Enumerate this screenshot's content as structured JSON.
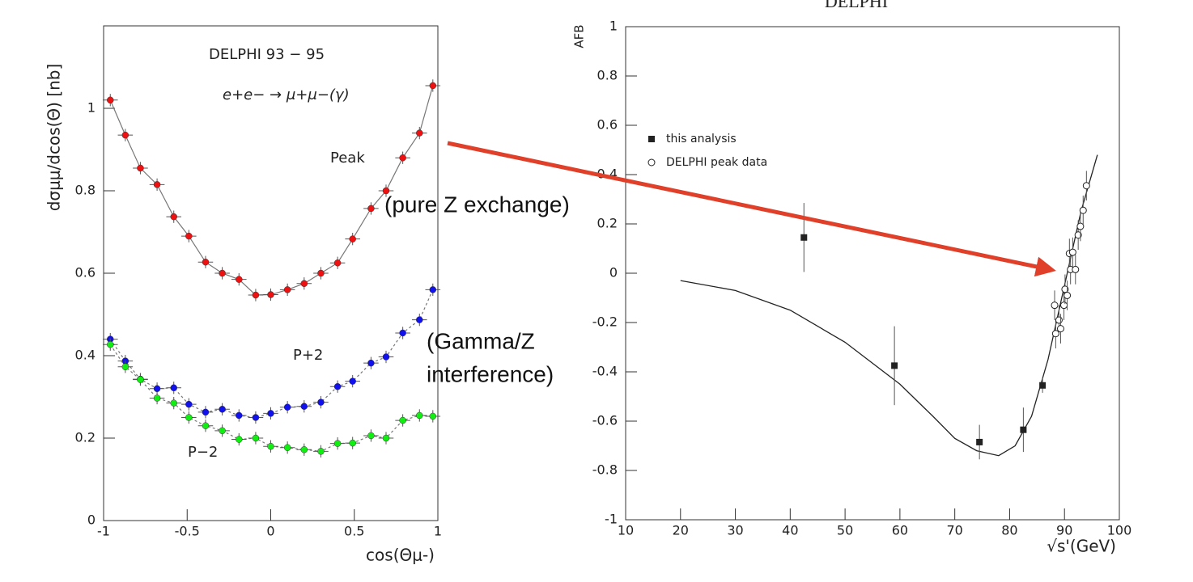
{
  "chart_data": [
    {
      "type": "scatter",
      "ylabel": "dσμμ/dcos(Θ) [nb]",
      "xlabel": "cos(Θμ-)",
      "annotations": [
        "DELPHI 93 − 95",
        "e+e− → μ+μ−(γ)",
        "Peak",
        "P+2",
        "P−2"
      ],
      "xlim": [
        -1,
        1
      ],
      "ylim": [
        0,
        1.2
      ],
      "xticks": [
        -1,
        -0.5,
        0,
        0.5,
        1
      ],
      "yticks": [
        0,
        0.2,
        0.4,
        0.6,
        0.8,
        1
      ],
      "xerr": 0.045,
      "x": [
        -0.96,
        -0.87,
        -0.78,
        -0.68,
        -0.58,
        -0.49,
        -0.39,
        -0.29,
        -0.19,
        -0.09,
        0,
        0.1,
        0.2,
        0.3,
        0.4,
        0.49,
        0.6,
        0.69,
        0.79,
        0.89,
        0.97
      ],
      "series": [
        {
          "name": "Peak",
          "color": "#ee1111",
          "line": "solid",
          "yerr": 0.015,
          "values": [
            1.02,
            0.935,
            0.855,
            0.815,
            0.737,
            0.69,
            0.627,
            0.6,
            0.585,
            0.547,
            0.548,
            0.56,
            0.575,
            0.6,
            0.625,
            0.683,
            0.757,
            0.8,
            0.88,
            0.94,
            1.055
          ]
        },
        {
          "name": "P+2",
          "color": "#1111ee",
          "line": "dotted",
          "yerr": 0.015,
          "values": [
            0.44,
            0.387,
            0.343,
            0.32,
            0.322,
            0.282,
            0.263,
            0.27,
            0.255,
            0.25,
            0.26,
            0.275,
            0.277,
            0.287,
            0.325,
            0.338,
            0.382,
            0.397,
            0.455,
            0.487,
            0.56
          ]
        },
        {
          "name": "P−2",
          "color": "#11ee11",
          "line": "dotted",
          "yerr": 0.015,
          "values": [
            0.427,
            0.373,
            0.342,
            0.297,
            0.285,
            0.25,
            0.23,
            0.218,
            0.197,
            0.2,
            0.18,
            0.177,
            0.172,
            0.168,
            0.187,
            0.188,
            0.206,
            0.2,
            0.243,
            0.255,
            0.253
          ]
        }
      ]
    },
    {
      "type": "scatter",
      "title": "DELPHI",
      "ylabel": "AFB",
      "xlabel": "√s'(GeV)",
      "xlim": [
        10,
        100
      ],
      "ylim": [
        -1,
        1
      ],
      "xticks": [
        10,
        20,
        30,
        40,
        50,
        60,
        70,
        80,
        90,
        100
      ],
      "yticks": [
        -1,
        -0.8,
        -0.6,
        -0.4,
        -0.2,
        0,
        0.2,
        0.4,
        0.6,
        0.8,
        1
      ],
      "legend": "upper left",
      "series": [
        {
          "name": "this analysis",
          "color": "#222222",
          "marker": "square",
          "x": [
            42.5,
            59,
            74.5,
            82.5,
            86
          ],
          "values": [
            0.145,
            -0.375,
            -0.685,
            -0.635,
            -0.455
          ],
          "errors": [
            0.14,
            0.16,
            0.07,
            0.09,
            0.03
          ]
        },
        {
          "name": "DELPHI peak data",
          "color": "#222222",
          "marker": "open-circle",
          "yerr": 0.06,
          "x": [
            88.2,
            88.4,
            89,
            89.3,
            89.9,
            90.1,
            90.5,
            90.9,
            91.1,
            91.5,
            92,
            92.5,
            92.9,
            93.4,
            94
          ],
          "values": [
            -0.13,
            -0.245,
            -0.19,
            -0.225,
            -0.13,
            -0.065,
            -0.09,
            0.08,
            0.015,
            0.085,
            0.015,
            0.155,
            0.19,
            0.255,
            0.355
          ]
        }
      ],
      "curve": {
        "x": [
          20,
          30,
          40,
          50,
          60,
          66,
          70,
          74,
          78,
          81,
          84,
          87,
          89,
          91,
          93,
          96
        ],
        "values": [
          -0.03,
          -0.07,
          -0.15,
          -0.28,
          -0.45,
          -0.58,
          -0.67,
          -0.72,
          -0.74,
          -0.7,
          -0.58,
          -0.35,
          -0.15,
          0.05,
          0.25,
          0.48
        ]
      }
    }
  ],
  "annotations": [
    "(pure Z exchange)",
    "(Gamma/Z",
    "interference)"
  ]
}
